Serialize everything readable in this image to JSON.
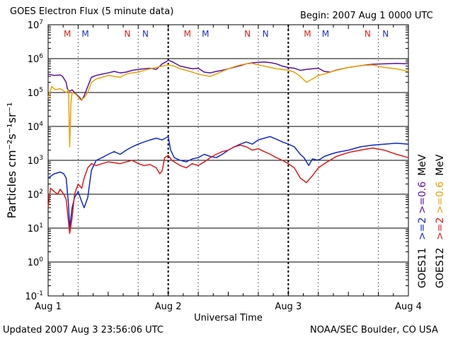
{
  "header": {
    "title": "GOES Electron Flux (5 minute data)",
    "begin": "Begin: 2007 Aug 1 0000 UTC"
  },
  "footer": {
    "updated": "Updated 2007 Aug  3 23:56:06 UTC",
    "credit": "NOAA/SEC Boulder, CO USA"
  },
  "chart_data": {
    "type": "line",
    "title": "GOES Electron Flux (5 minute data)",
    "xlabel": "Universal Time",
    "ylabel": "Particles cm⁻²s⁻¹sr⁻¹",
    "y_scale": "log",
    "ylim_exponent": [
      -1,
      7
    ],
    "y_tick_exponents": [
      -1,
      0,
      1,
      2,
      3,
      4,
      5,
      6,
      7
    ],
    "x_unit": "days since 2007 Aug 1 0000 UTC",
    "xlim": [
      0,
      3
    ],
    "x_ticks": [
      {
        "x": 0,
        "label": "Aug 1"
      },
      {
        "x": 1,
        "label": "Aug 2"
      },
      {
        "x": 2,
        "label": "Aug 3"
      },
      {
        "x": 3,
        "label": "Aug 4"
      }
    ],
    "threshold": {
      "value": 1000,
      "style": "dashed"
    },
    "magnetopause_markers": [
      {
        "x": 0.16,
        "label": "M",
        "color": "#e02020"
      },
      {
        "x": 0.31,
        "label": "M",
        "color": "#2030d0"
      },
      {
        "x": 0.66,
        "label": "N",
        "color": "#e02020"
      },
      {
        "x": 0.81,
        "label": "N",
        "color": "#2030d0"
      },
      {
        "x": 1.16,
        "label": "M",
        "color": "#e02020"
      },
      {
        "x": 1.31,
        "label": "M",
        "color": "#2030d0"
      },
      {
        "x": 1.66,
        "label": "N",
        "color": "#e02020"
      },
      {
        "x": 1.81,
        "label": "N",
        "color": "#2030d0"
      },
      {
        "x": 2.16,
        "label": "M",
        "color": "#e02020"
      },
      {
        "x": 2.31,
        "label": "M",
        "color": "#2030d0"
      },
      {
        "x": 2.66,
        "label": "N",
        "color": "#e02020"
      },
      {
        "x": 2.81,
        "label": "N",
        "color": "#2030d0"
      }
    ],
    "legend": {
      "goes11_label": "GOES11",
      "goes12_label": "GOES12",
      "goes11_ge2": ">=2",
      "goes11_ge06": ">=0.6",
      "goes12_ge2": ">=2",
      "goes12_ge06": ">=0.6",
      "unit": "MeV",
      "unit2": "MeV"
    },
    "series": [
      {
        "name": "GOES11 >=0.6 MeV",
        "color": "#5a10a0",
        "x": [
          0,
          0.05,
          0.1,
          0.12,
          0.15,
          0.16,
          0.18,
          0.2,
          0.22,
          0.25,
          0.28,
          0.3,
          0.33,
          0.36,
          0.4,
          0.45,
          0.5,
          0.55,
          0.6,
          0.65,
          0.7,
          0.75,
          0.8,
          0.85,
          0.9,
          0.95,
          0.98,
          1.0,
          1.02,
          1.05,
          1.1,
          1.15,
          1.2,
          1.25,
          1.3,
          1.35,
          1.4,
          1.45,
          1.5,
          1.55,
          1.6,
          1.65,
          1.7,
          1.75,
          1.8,
          1.85,
          1.9,
          1.95,
          2.0,
          2.05,
          2.1,
          2.15,
          2.2,
          2.25,
          2.3,
          2.35,
          2.4,
          2.45,
          2.5,
          2.6,
          2.7,
          2.8,
          2.9,
          3.0
        ],
        "y": [
          350000,
          320000,
          330000,
          300000,
          200000,
          130000,
          110000,
          120000,
          100000,
          80000,
          60000,
          80000,
          150000,
          280000,
          320000,
          350000,
          380000,
          420000,
          380000,
          400000,
          450000,
          480000,
          500000,
          520000,
          480000,
          700000,
          800000,
          900000,
          850000,
          750000,
          600000,
          550000,
          500000,
          520000,
          400000,
          380000,
          420000,
          450000,
          500000,
          560000,
          620000,
          700000,
          750000,
          780000,
          800000,
          760000,
          700000,
          600000,
          550000,
          520000,
          450000,
          480000,
          500000,
          520000,
          420000,
          400000,
          460000,
          500000,
          550000,
          620000,
          680000,
          700000,
          720000,
          700000
        ]
      },
      {
        "name": "GOES12 >=0.6 MeV",
        "color": "#f0a000",
        "x": [
          0,
          0.03,
          0.06,
          0.1,
          0.15,
          0.17,
          0.18,
          0.19,
          0.2,
          0.23,
          0.27,
          0.3,
          0.33,
          0.36,
          0.4,
          0.45,
          0.5,
          0.55,
          0.6,
          0.65,
          0.7,
          0.75,
          0.8,
          0.85,
          0.9,
          0.95,
          1.0,
          1.05,
          1.1,
          1.15,
          1.2,
          1.25,
          1.3,
          1.35,
          1.4,
          1.45,
          1.5,
          1.55,
          1.6,
          1.65,
          1.7,
          1.75,
          1.8,
          1.85,
          1.9,
          1.95,
          2.0,
          2.05,
          2.1,
          2.15,
          2.2,
          2.25,
          2.3,
          2.35,
          2.4,
          2.5,
          2.6,
          2.7,
          2.8,
          2.9,
          3.0
        ],
        "y": [
          70000,
          150000,
          120000,
          130000,
          100000,
          120000,
          2500,
          50000,
          100000,
          90000,
          60000,
          70000,
          100000,
          200000,
          250000,
          280000,
          320000,
          300000,
          280000,
          350000,
          380000,
          400000,
          450000,
          500000,
          550000,
          600000,
          650000,
          600000,
          500000,
          450000,
          400000,
          350000,
          320000,
          300000,
          350000,
          420000,
          500000,
          580000,
          650000,
          700000,
          720000,
          650000,
          600000,
          550000,
          500000,
          480000,
          450000,
          400000,
          300000,
          200000,
          250000,
          320000,
          350000,
          400000,
          450000,
          550000,
          620000,
          650000,
          550000,
          500000,
          420000
        ]
      },
      {
        "name": "GOES11 >=2 MeV",
        "color": "#1028d0",
        "x": [
          0,
          0.05,
          0.1,
          0.13,
          0.15,
          0.17,
          0.18,
          0.2,
          0.22,
          0.25,
          0.28,
          0.3,
          0.33,
          0.36,
          0.4,
          0.45,
          0.5,
          0.55,
          0.6,
          0.65,
          0.7,
          0.75,
          0.8,
          0.85,
          0.9,
          0.95,
          1.0,
          1.02,
          1.05,
          1.1,
          1.15,
          1.2,
          1.25,
          1.3,
          1.35,
          1.4,
          1.45,
          1.5,
          1.55,
          1.6,
          1.65,
          1.7,
          1.75,
          1.8,
          1.85,
          1.9,
          1.95,
          2.0,
          2.05,
          2.1,
          2.13,
          2.17,
          2.2,
          2.25,
          2.3,
          2.35,
          2.4,
          2.5,
          2.6,
          2.7,
          2.8,
          2.9,
          3.0
        ],
        "y": [
          300,
          400,
          450,
          400,
          300,
          50,
          10,
          40,
          80,
          120,
          60,
          40,
          80,
          500,
          1000,
          1200,
          1500,
          1800,
          1500,
          2000,
          2500,
          3000,
          3500,
          4000,
          4500,
          4000,
          5000,
          2000,
          1200,
          1000,
          900,
          1100,
          1200,
          1500,
          1300,
          1200,
          1500,
          2000,
          2500,
          3000,
          3500,
          3000,
          4000,
          4500,
          5000,
          4200,
          3500,
          3000,
          2500,
          1500,
          1200,
          700,
          1100,
          1000,
          1300,
          1500,
          1700,
          2000,
          2500,
          2800,
          3000,
          3200,
          3000
        ]
      },
      {
        "name": "GOES12 >=2 MeV",
        "color": "#e01818",
        "x": [
          0,
          0.02,
          0.05,
          0.08,
          0.1,
          0.13,
          0.15,
          0.17,
          0.18,
          0.2,
          0.22,
          0.25,
          0.28,
          0.3,
          0.33,
          0.36,
          0.4,
          0.45,
          0.5,
          0.55,
          0.6,
          0.65,
          0.7,
          0.75,
          0.8,
          0.85,
          0.9,
          0.93,
          0.95,
          0.97,
          1.0,
          1.03,
          1.05,
          1.1,
          1.15,
          1.2,
          1.25,
          1.3,
          1.35,
          1.4,
          1.45,
          1.5,
          1.55,
          1.6,
          1.65,
          1.7,
          1.75,
          1.8,
          1.85,
          1.9,
          1.95,
          2.0,
          2.05,
          2.1,
          2.15,
          2.2,
          2.25,
          2.3,
          2.4,
          2.5,
          2.6,
          2.7,
          2.8,
          2.9,
          3.0
        ],
        "y": [
          40,
          150,
          120,
          100,
          140,
          100,
          70,
          15,
          7,
          20,
          100,
          200,
          150,
          300,
          600,
          800,
          700,
          800,
          900,
          850,
          800,
          900,
          1000,
          800,
          700,
          750,
          600,
          400,
          500,
          1200,
          1400,
          1000,
          900,
          700,
          600,
          800,
          700,
          900,
          1200,
          1500,
          1800,
          2000,
          2500,
          2800,
          2500,
          2000,
          2200,
          1800,
          1500,
          1200,
          1000,
          800,
          600,
          300,
          220,
          350,
          600,
          800,
          1300,
          1700,
          2000,
          2300,
          2000,
          1500,
          1200
        ]
      }
    ]
  }
}
